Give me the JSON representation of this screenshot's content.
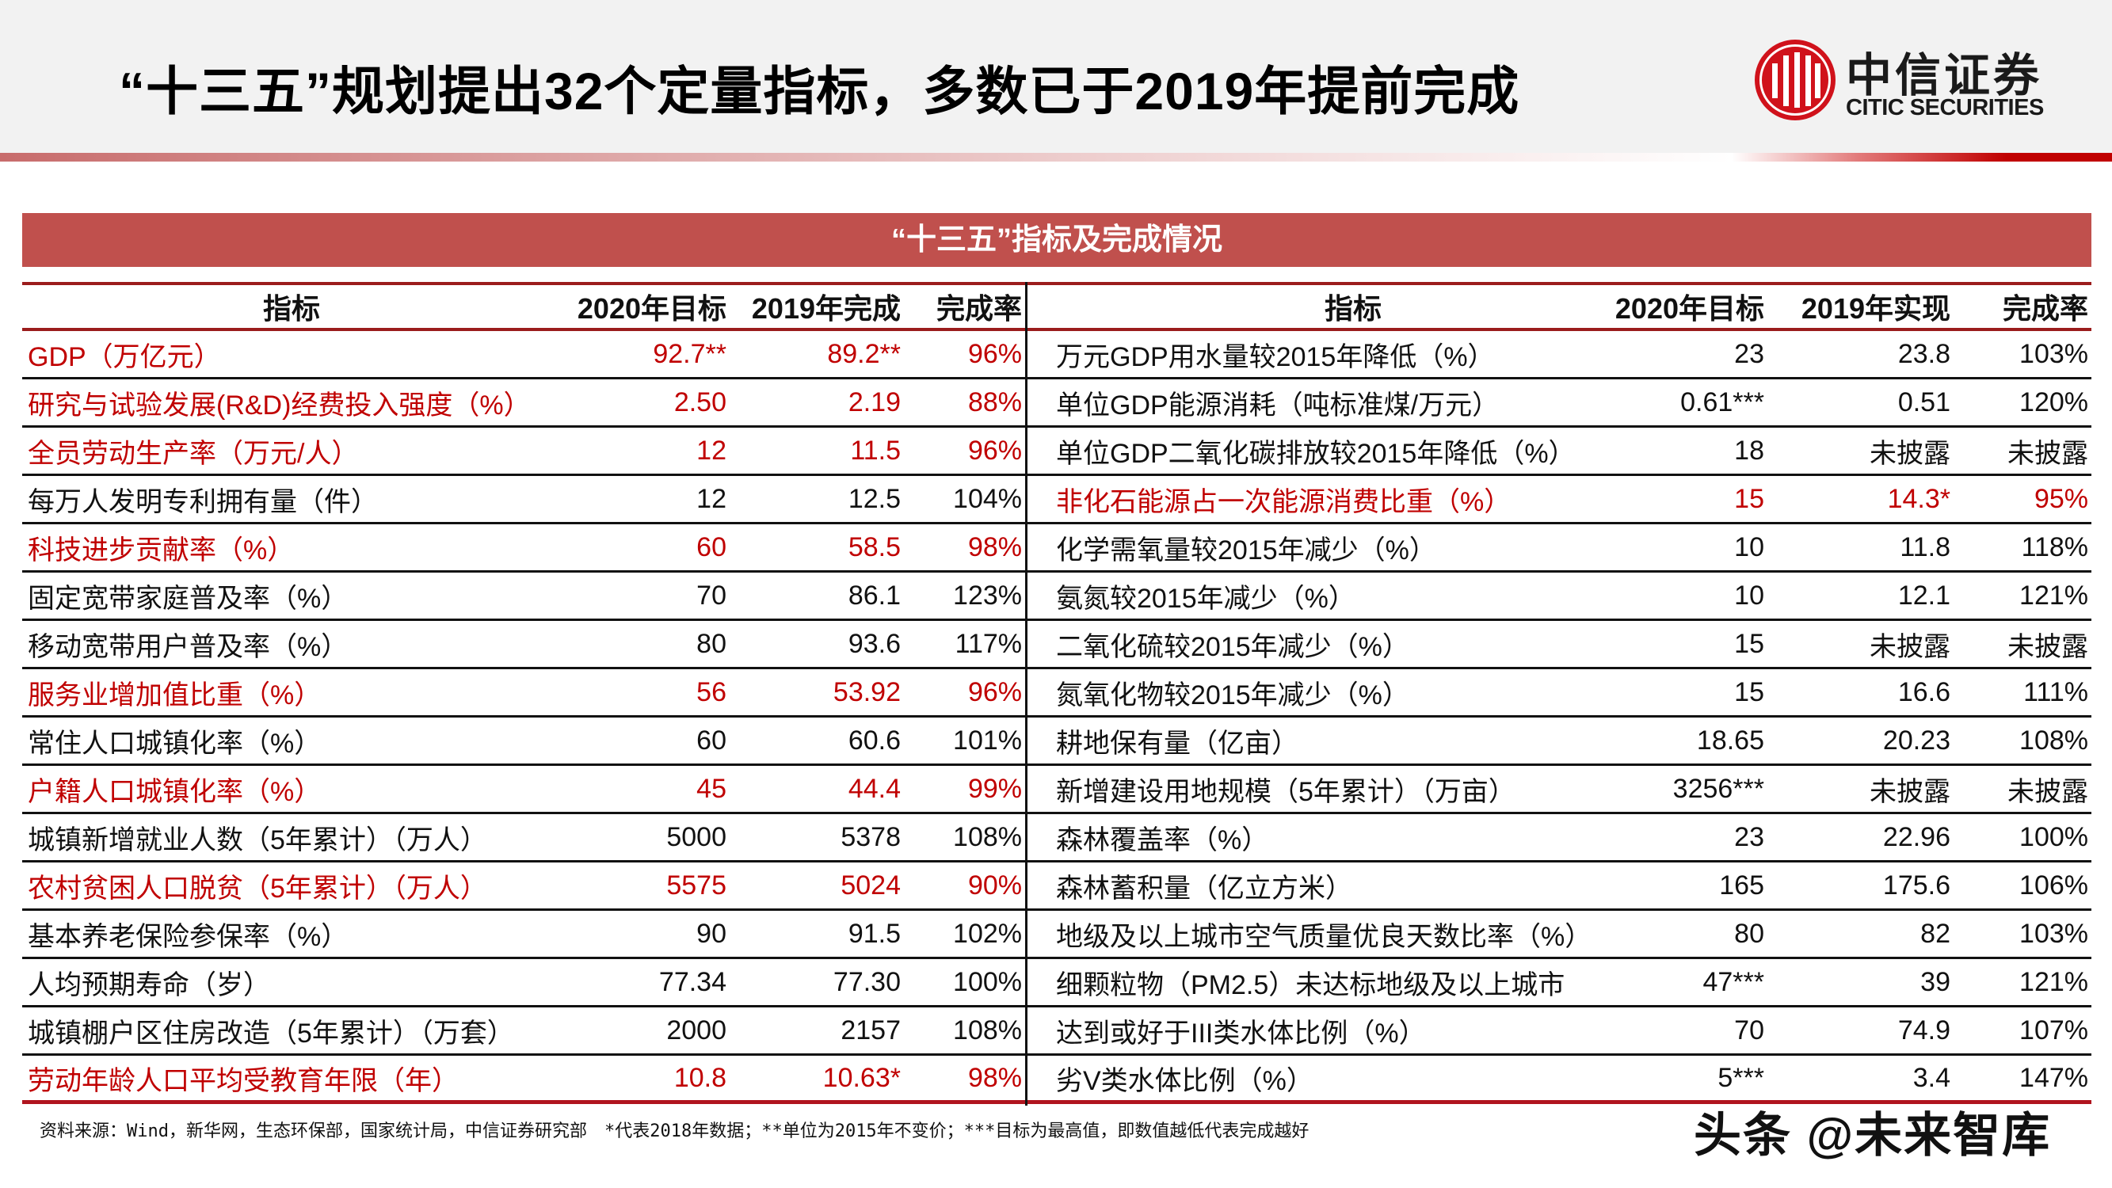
{
  "header": {
    "title": "“十三五”规划提出32个定量指标，多数已于2019年提前完成",
    "logo": {
      "cn": "中信证券",
      "en": "CITIC SECURITIES",
      "icon": "citic-logo-icon",
      "color": "#d0121b"
    }
  },
  "colors": {
    "title_bar": "#c0504d",
    "highlight_text": "#c00000",
    "header_border": "#9b1c1c",
    "bottom_border": "#b0141e"
  },
  "table": {
    "title": "“十三五”指标及完成情况",
    "left_columns": [
      "指标",
      "2020年目标",
      "2019年完成",
      "完成率"
    ],
    "right_columns": [
      "指标",
      "2020年目标",
      "2019年实现",
      "完成率"
    ],
    "left_rows": [
      {
        "label": "GDP（万亿元）",
        "target": "92.7**",
        "actual": "89.2**",
        "rate": "96%",
        "highlight": true
      },
      {
        "label": "研究与试验发展(R&D)经费投入强度（%）",
        "target": "2.50",
        "actual": "2.19",
        "rate": "88%",
        "highlight": true
      },
      {
        "label": "全员劳动生产率（万元/人）",
        "target": "12",
        "actual": "11.5",
        "rate": "96%",
        "highlight": true
      },
      {
        "label": "每万人发明专利拥有量（件）",
        "target": "12",
        "actual": "12.5",
        "rate": "104%",
        "highlight": false
      },
      {
        "label": "科技进步贡献率（%）",
        "target": "60",
        "actual": "58.5",
        "rate": "98%",
        "highlight": true
      },
      {
        "label": "固定宽带家庭普及率（%）",
        "target": "70",
        "actual": "86.1",
        "rate": "123%",
        "highlight": false
      },
      {
        "label": "移动宽带用户普及率（%）",
        "target": "80",
        "actual": "93.6",
        "rate": "117%",
        "highlight": false
      },
      {
        "label": "服务业增加值比重（%）",
        "target": "56",
        "actual": "53.92",
        "rate": "96%",
        "highlight": true
      },
      {
        "label": "常住人口城镇化率（%）",
        "target": "60",
        "actual": "60.6",
        "rate": "101%",
        "highlight": false
      },
      {
        "label": "户籍人口城镇化率（%）",
        "target": "45",
        "actual": "44.4",
        "rate": "99%",
        "highlight": true
      },
      {
        "label": "城镇新增就业人数（5年累计）（万人）",
        "target": "5000",
        "actual": "5378",
        "rate": "108%",
        "highlight": false
      },
      {
        "label": "农村贫困人口脱贫（5年累计）（万人）",
        "target": "5575",
        "actual": "5024",
        "rate": "90%",
        "highlight": true
      },
      {
        "label": "基本养老保险参保率（%）",
        "target": "90",
        "actual": "91.5",
        "rate": "102%",
        "highlight": false
      },
      {
        "label": "人均预期寿命（岁）",
        "target": "77.34",
        "actual": "77.30",
        "rate": "100%",
        "highlight": false
      },
      {
        "label": "城镇棚户区住房改造（5年累计）（万套）",
        "target": "2000",
        "actual": "2157",
        "rate": "108%",
        "highlight": false
      },
      {
        "label": "劳动年龄人口平均受教育年限（年）",
        "target": "10.8",
        "actual": "10.63*",
        "rate": "98%",
        "highlight": true
      }
    ],
    "right_rows": [
      {
        "label": "万元GDP用水量较2015年降低（%）",
        "target": "23",
        "actual": "23.8",
        "rate": "103%",
        "highlight": false
      },
      {
        "label": "单位GDP能源消耗（吨标准煤/万元）",
        "target": "0.61***",
        "actual": "0.51",
        "rate": "120%",
        "highlight": false
      },
      {
        "label": "单位GDP二氧化碳排放较2015年降低（%）",
        "target": "18",
        "actual": "未披露",
        "rate": "未披露",
        "highlight": false
      },
      {
        "label": "非化石能源占一次能源消费比重（%）",
        "target": "15",
        "actual": "14.3*",
        "rate": "95%",
        "highlight": true
      },
      {
        "label": "化学需氧量较2015年减少（%）",
        "target": "10",
        "actual": "11.8",
        "rate": "118%",
        "highlight": false
      },
      {
        "label": "氨氮较2015年减少（%）",
        "target": "10",
        "actual": "12.1",
        "rate": "121%",
        "highlight": false
      },
      {
        "label": "二氧化硫较2015年减少（%）",
        "target": "15",
        "actual": "未披露",
        "rate": "未披露",
        "highlight": false
      },
      {
        "label": "氮氧化物较2015年减少（%）",
        "target": "15",
        "actual": "16.6",
        "rate": "111%",
        "highlight": false
      },
      {
        "label": "耕地保有量（亿亩）",
        "target": "18.65",
        "actual": "20.23",
        "rate": "108%",
        "highlight": false
      },
      {
        "label": "新增建设用地规模（5年累计）（万亩）",
        "target": "3256***",
        "actual": "未披露",
        "rate": "未披露",
        "highlight": false
      },
      {
        "label": "森林覆盖率（%）",
        "target": "23",
        "actual": "22.96",
        "rate": "100%",
        "highlight": false
      },
      {
        "label": "森林蓄积量（亿立方米）",
        "target": "165",
        "actual": "175.6",
        "rate": "106%",
        "highlight": false
      },
      {
        "label": "地级及以上城市空气质量优良天数比率（%）",
        "target": "80",
        "actual": "82",
        "rate": "103%",
        "highlight": false
      },
      {
        "label": "细颗粒物（PM2.5）未达标地级及以上城市",
        "target": "47***",
        "actual": "39",
        "rate": "121%",
        "highlight": false
      },
      {
        "label": "达到或好于III类水体比例（%）",
        "target": "70",
        "actual": "74.9",
        "rate": "107%",
        "highlight": false
      },
      {
        "label": "劣V类水体比例（%）",
        "target": "5***",
        "actual": "3.4",
        "rate": "147%",
        "highlight": false
      }
    ]
  },
  "footnote": "资料来源：Wind，新华网，生态环保部，国家统计局，中信证券研究部　*代表2018年数据；**单位为2015年不变价；***目标为最高值，即数值越低代表完成越好",
  "watermark": "头条 @未来智库"
}
